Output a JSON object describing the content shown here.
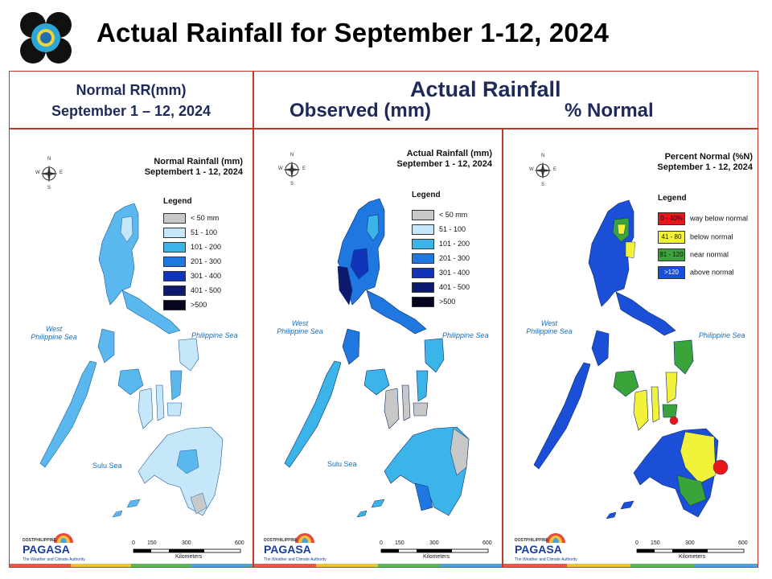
{
  "title": "Actual Rainfall for September 1-12, 2024",
  "header": {
    "left_line1": "Normal RR(mm)",
    "left_line2": "September 1 – 12, 2024",
    "right_title": "Actual Rainfall",
    "right_sub_observed": "Observed (mm)",
    "right_sub_percent": "% Normal"
  },
  "compass": {
    "n": "N",
    "s": "S",
    "e": "E",
    "w": "W"
  },
  "seas": {
    "west": "West\nPhilippine Sea",
    "east": "Philippine Sea",
    "sulu": "Sulu Sea"
  },
  "rainfall_legend": {
    "title": "Legend",
    "items": [
      {
        "label": "< 50 mm",
        "color": "#c8c8c8"
      },
      {
        "label": "51 - 100",
        "color": "#c6e6fa"
      },
      {
        "label": "101 - 200",
        "color": "#3bb4ea"
      },
      {
        "label": "201 - 300",
        "color": "#1f78e0"
      },
      {
        "label": "301 - 400",
        "color": "#1234b8"
      },
      {
        "label": "401 - 500",
        "color": "#0d1a6e"
      },
      {
        "label": ">500",
        "color": "#05051f"
      }
    ]
  },
  "percent_legend": {
    "title": "Legend",
    "items": [
      {
        "box": "0 - 40%",
        "label": "way below normal",
        "color": "#e8161b"
      },
      {
        "box": "41 - 80",
        "label": "below normal",
        "color": "#f2f23a"
      },
      {
        "box": "81 - 120",
        "label": "near normal",
        "color": "#3aa43a"
      },
      {
        "box": ">120",
        "label": "above normal",
        "color": "#1c4fd8"
      }
    ]
  },
  "maps": [
    {
      "title1": "Normal Rainfall (mm)",
      "title2": "Septembert 1 - 12, 2024"
    },
    {
      "title1": "Actual Rainfall (mm)",
      "title2": "September 1 - 12, 2024"
    },
    {
      "title1": "Percent Normal (%N)",
      "title2": "September 1 - 12, 2024"
    }
  ],
  "scale": {
    "ticks": [
      "0",
      "150",
      "300",
      "600"
    ],
    "unit": "Kilometers"
  },
  "pagasa": {
    "dost": "DOST",
    "name": "PAGASA",
    "tagline": "The Weather and Climate Authority",
    "phil": "PHILIPPINE"
  },
  "bottom_bar_colors": [
    "#e45a4f",
    "#f0c23a",
    "#5db85b",
    "#4aa3d8"
  ],
  "colors": {
    "frame": "#c0392b",
    "header_text": "#1f2a5a"
  }
}
